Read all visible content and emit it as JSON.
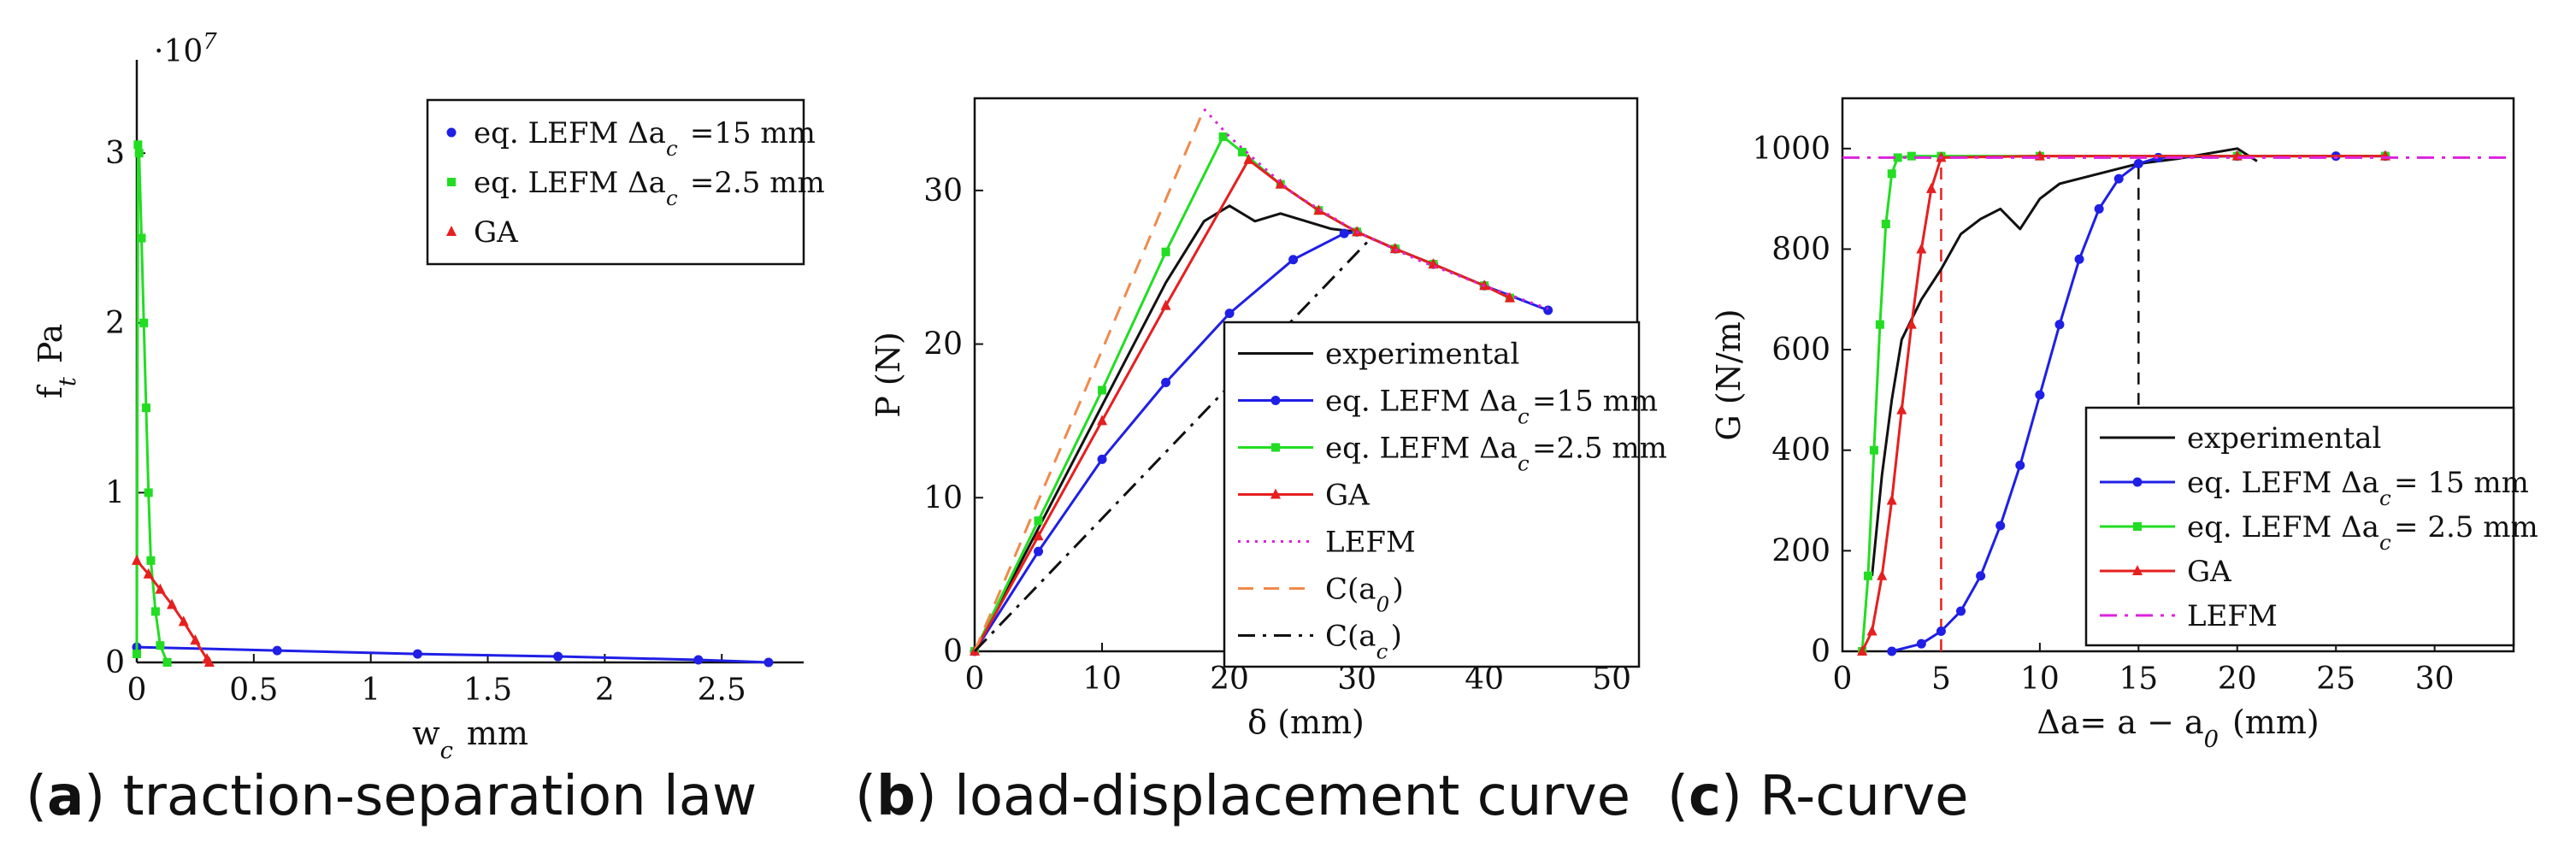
{
  "chart_data": [
    {
      "type": "line",
      "panel": "a",
      "caption": {
        "label": "a",
        "text": " traction-separation law"
      },
      "xlabel": "w_c mm",
      "ylabel": "f_t Pa",
      "y_multiplier": "·10^7",
      "xlim": [
        0,
        2.85
      ],
      "ylim": [
        0,
        3.55
      ],
      "xticks": [
        0,
        0.5,
        1,
        1.5,
        2,
        2.5
      ],
      "xtick_labels": [
        "0",
        "0.5",
        "1",
        "1.5",
        "2",
        "2.5"
      ],
      "yticks": [
        0,
        1,
        2,
        3
      ],
      "ytick_labels": [
        "0",
        "1",
        "2",
        "3"
      ],
      "legend_position": "top-right",
      "series": [
        {
          "name": "eq. LEFM Δa_c =15 mm",
          "color": "#1f1fe6",
          "marker": "circle",
          "x": [
            0,
            0.6,
            1.2,
            1.8,
            2.4,
            2.7
          ],
          "y": [
            0.09,
            0.07,
            0.05,
            0.035,
            0.015,
            0
          ]
        },
        {
          "name": "eq. LEFM Δa_c =2.5 mm",
          "color": "#22dd22",
          "marker": "square",
          "x": [
            0,
            0.005,
            0.01,
            0.02,
            0.03,
            0.04,
            0.05,
            0.06,
            0.08,
            0.1,
            0.13
          ],
          "y": [
            0.05,
            3.05,
            3.0,
            2.5,
            2.0,
            1.5,
            1.0,
            0.6,
            0.3,
            0.1,
            0
          ]
        },
        {
          "name": "GA",
          "color": "#e61f1f",
          "marker": "triangle",
          "x": [
            0,
            0.05,
            0.1,
            0.15,
            0.2,
            0.25,
            0.3,
            0.31
          ],
          "y": [
            0.6,
            0.52,
            0.43,
            0.34,
            0.24,
            0.13,
            0.02,
            0
          ]
        }
      ]
    },
    {
      "type": "line",
      "panel": "b",
      "caption": {
        "label": "b",
        "text": " load-displacement curve"
      },
      "xlabel": "δ (mm)",
      "ylabel": "P (N)",
      "xlim": [
        0,
        52
      ],
      "ylim": [
        0,
        36
      ],
      "xticks": [
        0,
        10,
        20,
        30,
        40,
        50
      ],
      "xtick_labels": [
        "0",
        "10",
        "20",
        "30",
        "40",
        "50"
      ],
      "yticks": [
        0,
        10,
        20,
        30
      ],
      "ytick_labels": [
        "0",
        "10",
        "20",
        "30"
      ],
      "legend_position": "bottom-right",
      "series": [
        {
          "name": "experimental",
          "color": "#111111",
          "style": "solid",
          "x": [
            0,
            5,
            10,
            15,
            18,
            20,
            22,
            24,
            26,
            28,
            30,
            33,
            36,
            40,
            42
          ],
          "y": [
            0,
            8,
            16,
            24,
            28,
            29,
            28,
            28.5,
            28,
            27.5,
            27.3,
            26.2,
            25.2,
            23.8,
            23
          ]
        },
        {
          "name": "eq. LEFM Δa_c=15 mm",
          "color": "#1f1fe6",
          "style": "solid",
          "marker": "circle",
          "x": [
            0,
            5,
            10,
            15,
            20,
            25,
            29,
            30,
            33,
            36,
            40,
            45
          ],
          "y": [
            0,
            6.5,
            12.5,
            17.5,
            22,
            25.5,
            27.2,
            27.3,
            26.2,
            25.2,
            23.8,
            22.2
          ]
        },
        {
          "name": "eq. LEFM Δa_c=2.5 mm",
          "color": "#22dd22",
          "style": "solid",
          "marker": "square",
          "x": [
            0,
            5,
            10,
            15,
            19.5,
            21,
            24,
            27,
            30,
            33,
            36,
            40,
            42
          ],
          "y": [
            0,
            8.5,
            17,
            26,
            33.5,
            32.5,
            30.4,
            28.7,
            27.3,
            26.2,
            25.2,
            23.8,
            23
          ]
        },
        {
          "name": "GA",
          "color": "#e61f1f",
          "style": "solid",
          "marker": "triangle",
          "x": [
            0,
            5,
            10,
            15,
            21.5,
            24,
            27,
            30,
            33,
            36,
            40,
            42
          ],
          "y": [
            0,
            7.5,
            15,
            22.5,
            32,
            30.4,
            28.7,
            27.3,
            26.2,
            25.2,
            23.8,
            23
          ]
        },
        {
          "name": "LEFM",
          "color": "#dd22dd",
          "style": "dotted",
          "x": [
            18,
            20,
            22,
            25,
            30,
            35,
            40,
            45
          ],
          "y": [
            35.3,
            33.5,
            32,
            29.8,
            27.3,
            25.4,
            23.8,
            22.3
          ]
        },
        {
          "name": "C(a_0)",
          "color": "#f08a4b",
          "style": "dashed",
          "x": [
            0,
            18
          ],
          "y": [
            0,
            35.3
          ]
        },
        {
          "name": "C(a_c)",
          "color": "#111111",
          "style": "dashdot",
          "x": [
            0,
            31
          ],
          "y": [
            0,
            26.8
          ]
        }
      ]
    },
    {
      "type": "line",
      "panel": "c",
      "caption": {
        "label": "c",
        "text": " R-curve"
      },
      "xlabel": "Δa= a − a_0 (mm)",
      "ylabel": "G (N/m)",
      "xlim": [
        0,
        34
      ],
      "ylim": [
        0,
        1100
      ],
      "xticks": [
        0,
        5,
        10,
        15,
        20,
        25,
        30
      ],
      "xtick_labels": [
        "0",
        "5",
        "10",
        "15",
        "20",
        "25",
        "30"
      ],
      "yticks": [
        0,
        200,
        400,
        600,
        800,
        1000
      ],
      "ytick_labels": [
        "0",
        "200",
        "400",
        "600",
        "800",
        "1000"
      ],
      "legend_position": "bottom-right",
      "series": [
        {
          "name": "experimental",
          "color": "#111111",
          "style": "solid",
          "x": [
            1.5,
            2,
            2.5,
            3,
            3.5,
            4,
            5,
            6,
            7,
            8,
            9,
            10,
            11,
            12,
            13,
            14,
            15,
            17,
            20,
            21
          ],
          "y": [
            150,
            350,
            500,
            620,
            660,
            700,
            760,
            830,
            860,
            880,
            840,
            900,
            930,
            940,
            950,
            960,
            970,
            980,
            1000,
            975
          ]
        },
        {
          "name": "eq. LEFM Δa_c= 15 mm",
          "color": "#1f1fe6",
          "style": "solid",
          "marker": "circle",
          "x": [
            2.5,
            4,
            5,
            6,
            7,
            8,
            9,
            10,
            11,
            12,
            13,
            14,
            15,
            16,
            20,
            25,
            27.5
          ],
          "y": [
            0,
            15,
            40,
            80,
            150,
            250,
            370,
            510,
            650,
            780,
            880,
            940,
            970,
            982,
            985,
            985,
            985
          ]
        },
        {
          "name": "eq. LEFM Δa_c= 2.5 mm",
          "color": "#22dd22",
          "style": "solid",
          "marker": "square",
          "x": [
            1,
            1.3,
            1.6,
            1.9,
            2.2,
            2.5,
            2.8,
            3.5,
            5,
            10,
            20,
            27.5
          ],
          "y": [
            0,
            150,
            400,
            650,
            850,
            950,
            982,
            985,
            985,
            985,
            985,
            985
          ]
        },
        {
          "name": "GA",
          "color": "#e61f1f",
          "style": "solid",
          "marker": "triangle",
          "x": [
            1,
            1.5,
            2,
            2.5,
            3,
            3.5,
            4,
            4.5,
            5,
            10,
            20,
            27.5
          ],
          "y": [
            0,
            40,
            150,
            300,
            480,
            650,
            800,
            920,
            982,
            985,
            985,
            985
          ]
        },
        {
          "name": "LEFM",
          "color": "#dd22dd",
          "style": "dashdot",
          "x": [
            0,
            34
          ],
          "y": [
            982,
            982
          ]
        }
      ],
      "guides": [
        {
          "color": "#e61f1f",
          "x": 5,
          "y_from": 0,
          "y_to": 982
        },
        {
          "color": "#111111",
          "x": 15,
          "y_from": 490,
          "y_to": 982
        }
      ]
    }
  ]
}
